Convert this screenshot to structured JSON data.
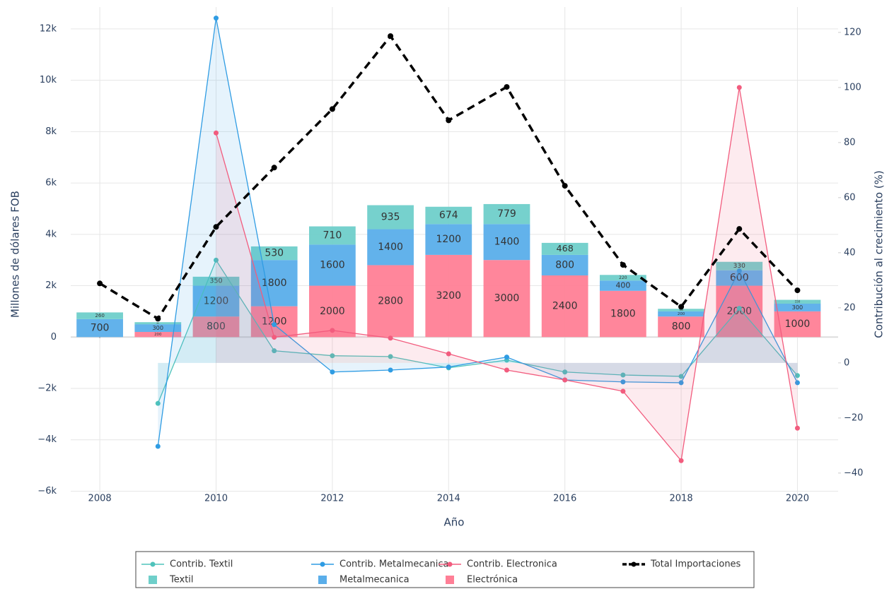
{
  "chart_data": {
    "type": "combo",
    "xlabel": "Año",
    "ylabel": "Millones de dólares FOB",
    "y2label": "Contribución al crecimiento (%)",
    "x": [
      2008,
      2009,
      2010,
      2011,
      2012,
      2013,
      2014,
      2015,
      2016,
      2017,
      2018,
      2019,
      2020
    ],
    "xlim": [
      2007.5,
      2020.7
    ],
    "xticks": [
      2008,
      2010,
      2012,
      2014,
      2016,
      2018,
      2020
    ],
    "ylim": [
      -6400,
      12850
    ],
    "yticks": [
      {
        "value": -6000,
        "label": "−6k"
      },
      {
        "value": -4000,
        "label": "−4k"
      },
      {
        "value": -2000,
        "label": "−2k"
      },
      0,
      {
        "value": 2000,
        "label": "2k"
      },
      {
        "value": 4000,
        "label": "4k"
      },
      {
        "value": 6000,
        "label": "6k"
      },
      {
        "value": 8000,
        "label": "8k"
      },
      {
        "value": 10000,
        "label": "10k"
      },
      {
        "value": 12000,
        "label": "12k"
      }
    ],
    "y2lim": [
      -50.3,
      129.2
    ],
    "y2ticks": [
      {
        "value": -40,
        "label": "−40"
      },
      {
        "value": -20,
        "label": "−20"
      },
      0,
      20,
      40,
      60,
      80,
      100,
      120
    ],
    "grid": true,
    "legend": "bottom",
    "series": [
      {
        "name": "Electrónica",
        "type": "bar",
        "color": "#ff7f96",
        "values": [
          0,
          200,
          800,
          1200,
          2000,
          2800,
          3200,
          3000,
          2400,
          1800,
          800,
          2000,
          1000
        ]
      },
      {
        "name": "Metalmecanica",
        "type": "bar",
        "color": "#5aaeea",
        "values": [
          700,
          300,
          1200,
          1800,
          1600,
          1400,
          1200,
          1400,
          800,
          400,
          200,
          600,
          300
        ]
      },
      {
        "name": "Textil",
        "type": "bar",
        "color": "#6fcfca",
        "values": [
          260,
          80,
          350,
          530,
          710,
          935,
          674,
          779,
          468,
          220,
          100,
          330,
          150
        ]
      },
      {
        "name": "Contrib. Textil",
        "type": "line",
        "axis": "y2",
        "color": "#4fc3bb",
        "values": [
          null,
          -14.7,
          37.3,
          4.4,
          2.6,
          2.3,
          -1.8,
          1.0,
          -3.3,
          -4.4,
          -4.9,
          19.8,
          -4.6
        ]
      },
      {
        "name": "Contrib. Metalmecanica",
        "type": "line",
        "axis": "y2",
        "color": "#2f9ce3",
        "values": [
          null,
          -30.3,
          125.2,
          13.9,
          -3.3,
          -2.6,
          -1.5,
          2.1,
          -6.2,
          -6.9,
          -7.2,
          33.4,
          -7.2
        ]
      },
      {
        "name": "Contrib. Electronica",
        "type": "line",
        "axis": "y2",
        "color": "#f25c7e",
        "values": [
          null,
          null,
          83.5,
          9.3,
          11.8,
          9.0,
          3.3,
          -2.6,
          -6.2,
          -10.3,
          -35.5,
          100.0,
          -23.7
        ]
      },
      {
        "name": "Total Importaciones",
        "type": "dashed",
        "color": "#000000",
        "values": [
          2090,
          715,
          4290,
          6600,
          8880,
          11720,
          8440,
          9740,
          5890,
          2810,
          1180,
          4210,
          1820
        ]
      }
    ]
  }
}
